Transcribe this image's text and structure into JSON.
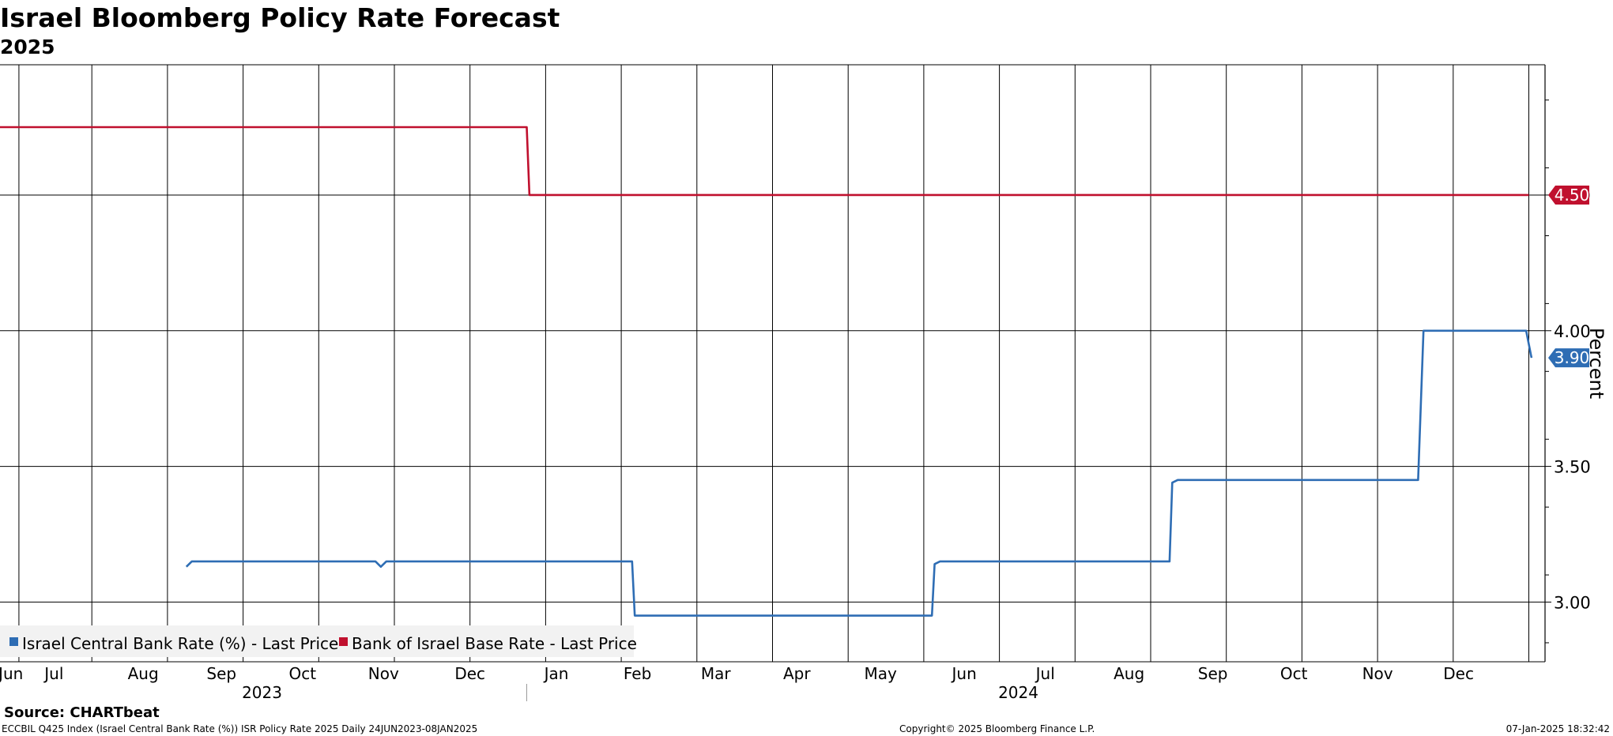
{
  "chart_data": {
    "type": "line",
    "title": "Israel Bloomberg Policy Rate Forecast",
    "subtitle": "2025",
    "ylabel": "Percent",
    "ylim": [
      2.78,
      4.98
    ],
    "y_ticks": [
      3.0,
      3.5,
      4.0,
      4.5
    ],
    "y_tick_labels": [
      "3.00",
      "3.50",
      "4.00",
      "4.50"
    ],
    "x_range": [
      "2023-06-20",
      "2025-01-12"
    ],
    "x_month_ticks": [
      "2023-06-27",
      "2023-07-24",
      "2023-08-21",
      "2023-09-18",
      "2023-10-16",
      "2023-11-13",
      "2023-12-11",
      "2024-01-08",
      "2024-02-05",
      "2024-03-04",
      "2024-04-01",
      "2024-04-29",
      "2024-05-27",
      "2024-06-24",
      "2024-07-22",
      "2024-08-19",
      "2024-09-16",
      "2024-10-14",
      "2024-11-11",
      "2024-12-09",
      "2025-01-06"
    ],
    "x_month_labels": [
      {
        "date": "2023-06-24",
        "text": "Jun"
      },
      {
        "date": "2023-07-10",
        "text": "Jul"
      },
      {
        "date": "2023-08-12",
        "text": "Aug"
      },
      {
        "date": "2023-09-10",
        "text": "Sep"
      },
      {
        "date": "2023-10-10",
        "text": "Oct"
      },
      {
        "date": "2023-11-09",
        "text": "Nov"
      },
      {
        "date": "2023-12-11",
        "text": "Dec"
      },
      {
        "date": "2024-01-12",
        "text": "Jan"
      },
      {
        "date": "2024-02-11",
        "text": "Feb"
      },
      {
        "date": "2024-03-11",
        "text": "Mar"
      },
      {
        "date": "2024-04-10",
        "text": "Apr"
      },
      {
        "date": "2024-05-11",
        "text": "May"
      },
      {
        "date": "2024-06-11",
        "text": "Jun"
      },
      {
        "date": "2024-07-11",
        "text": "Jul"
      },
      {
        "date": "2024-08-11",
        "text": "Aug"
      },
      {
        "date": "2024-09-11",
        "text": "Sep"
      },
      {
        "date": "2024-10-11",
        "text": "Oct"
      },
      {
        "date": "2024-11-11",
        "text": "Nov"
      },
      {
        "date": "2024-12-11",
        "text": "Dec"
      }
    ],
    "x_year_labels": [
      {
        "date": "2023-09-25",
        "text": "2023"
      },
      {
        "date": "2024-07-01",
        "text": "2024"
      }
    ],
    "year_divider": "2024-01-01",
    "legend_placement": "bottom-left",
    "grid": true,
    "series": [
      {
        "name": "Israel Central Bank Rate (%) - Last Price",
        "color": "#2e6db4",
        "last_label": "3.90",
        "points": [
          [
            "2023-08-28",
            3.13
          ],
          [
            "2023-08-30",
            3.15
          ],
          [
            "2023-11-06",
            3.15
          ],
          [
            "2023-11-08",
            3.13
          ],
          [
            "2023-11-10",
            3.15
          ],
          [
            "2024-02-09",
            3.15
          ],
          [
            "2024-02-10",
            2.95
          ],
          [
            "2024-05-30",
            2.95
          ],
          [
            "2024-05-31",
            3.14
          ],
          [
            "2024-06-02",
            3.15
          ],
          [
            "2024-08-26",
            3.15
          ],
          [
            "2024-08-27",
            3.44
          ],
          [
            "2024-08-29",
            3.45
          ],
          [
            "2024-11-26",
            3.45
          ],
          [
            "2024-11-28",
            4.0
          ],
          [
            "2025-01-05",
            4.0
          ],
          [
            "2025-01-07",
            3.9
          ]
        ]
      },
      {
        "name": "Bank of Israel Base Rate - Last Price",
        "color": "#c0102e",
        "last_label": "4.50",
        "points": [
          [
            "2023-06-20",
            4.75
          ],
          [
            "2024-01-01",
            4.75
          ],
          [
            "2024-01-02",
            4.5
          ],
          [
            "2025-01-06",
            4.5
          ]
        ]
      }
    ]
  },
  "footer": {
    "source": "Source: CHARTbeat",
    "index_info": "ECCBIL Q425 Index (Israel Central Bank Rate (%)) ISR Policy Rate 2025  Daily 24JUN2023-08JAN2025",
    "copyright": "Copyright© 2025 Bloomberg Finance L.P.",
    "timestamp": "07-Jan-2025 18:32:42"
  }
}
